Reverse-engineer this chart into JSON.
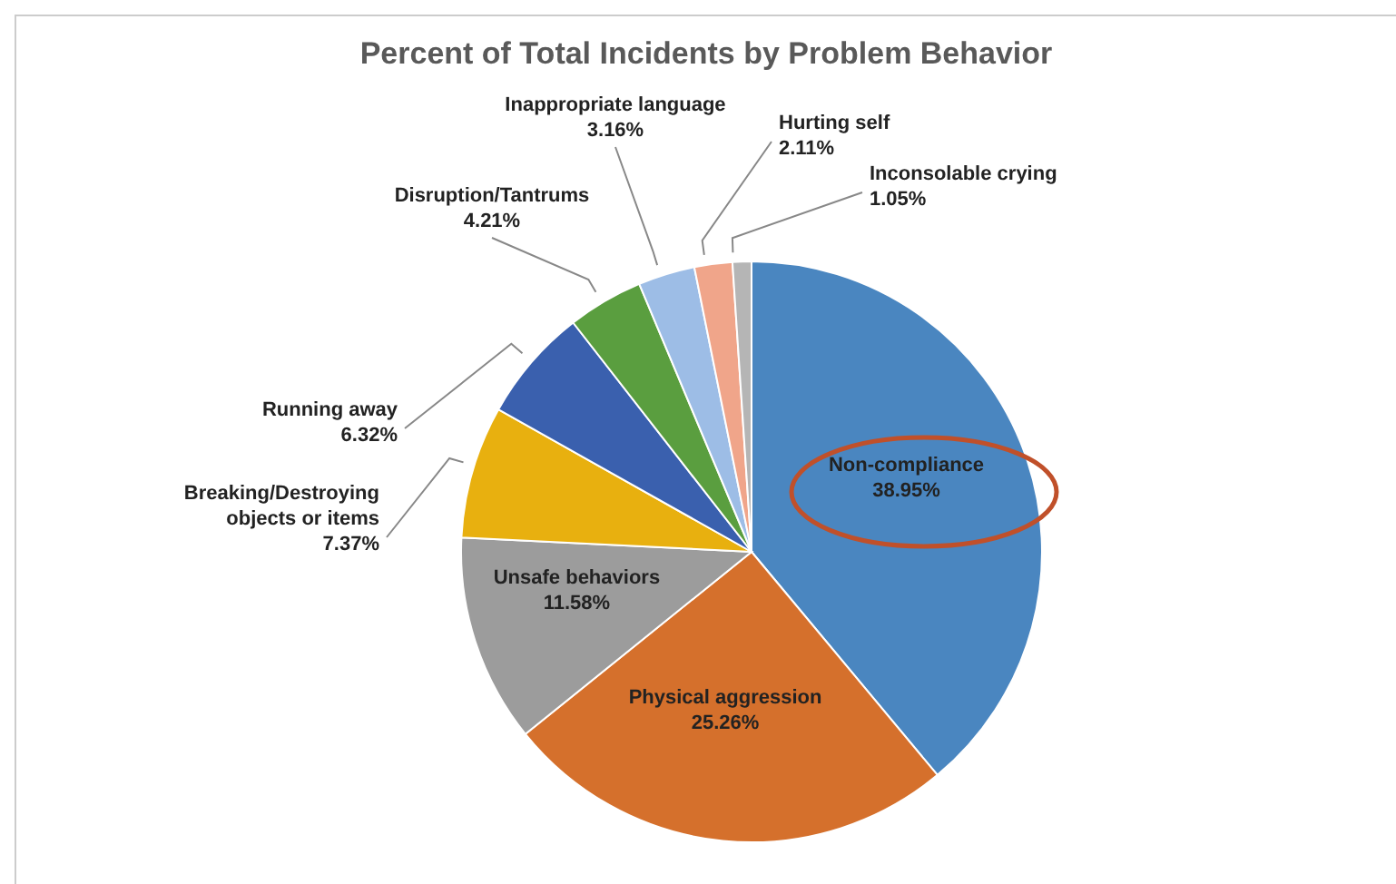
{
  "chart_data": {
    "type": "pie",
    "title": "Percent of Total Incidents by Problem Behavior",
    "categories": [
      "Non-compliance",
      "Physical aggression",
      "Unsafe behaviors",
      "Breaking/Destroying objects or items",
      "Running away",
      "Disruption/Tantrums",
      "Inappropriate language",
      "Hurting self",
      "Inconsolable crying"
    ],
    "values": [
      38.95,
      25.26,
      11.58,
      7.37,
      6.32,
      4.21,
      3.16,
      2.11,
      1.05
    ],
    "colors": [
      "#4a86c0",
      "#d5702c",
      "#9c9c9c",
      "#e8b00f",
      "#3a60ae",
      "#5a9e3f",
      "#9dbde6",
      "#f0a58a",
      "#b5b5b5"
    ],
    "value_labels": [
      "38.95%",
      "25.26%",
      "11.58%",
      "7.37%",
      "6.32%",
      "4.21%",
      "3.16%",
      "2.11%",
      "1.05%"
    ]
  }
}
